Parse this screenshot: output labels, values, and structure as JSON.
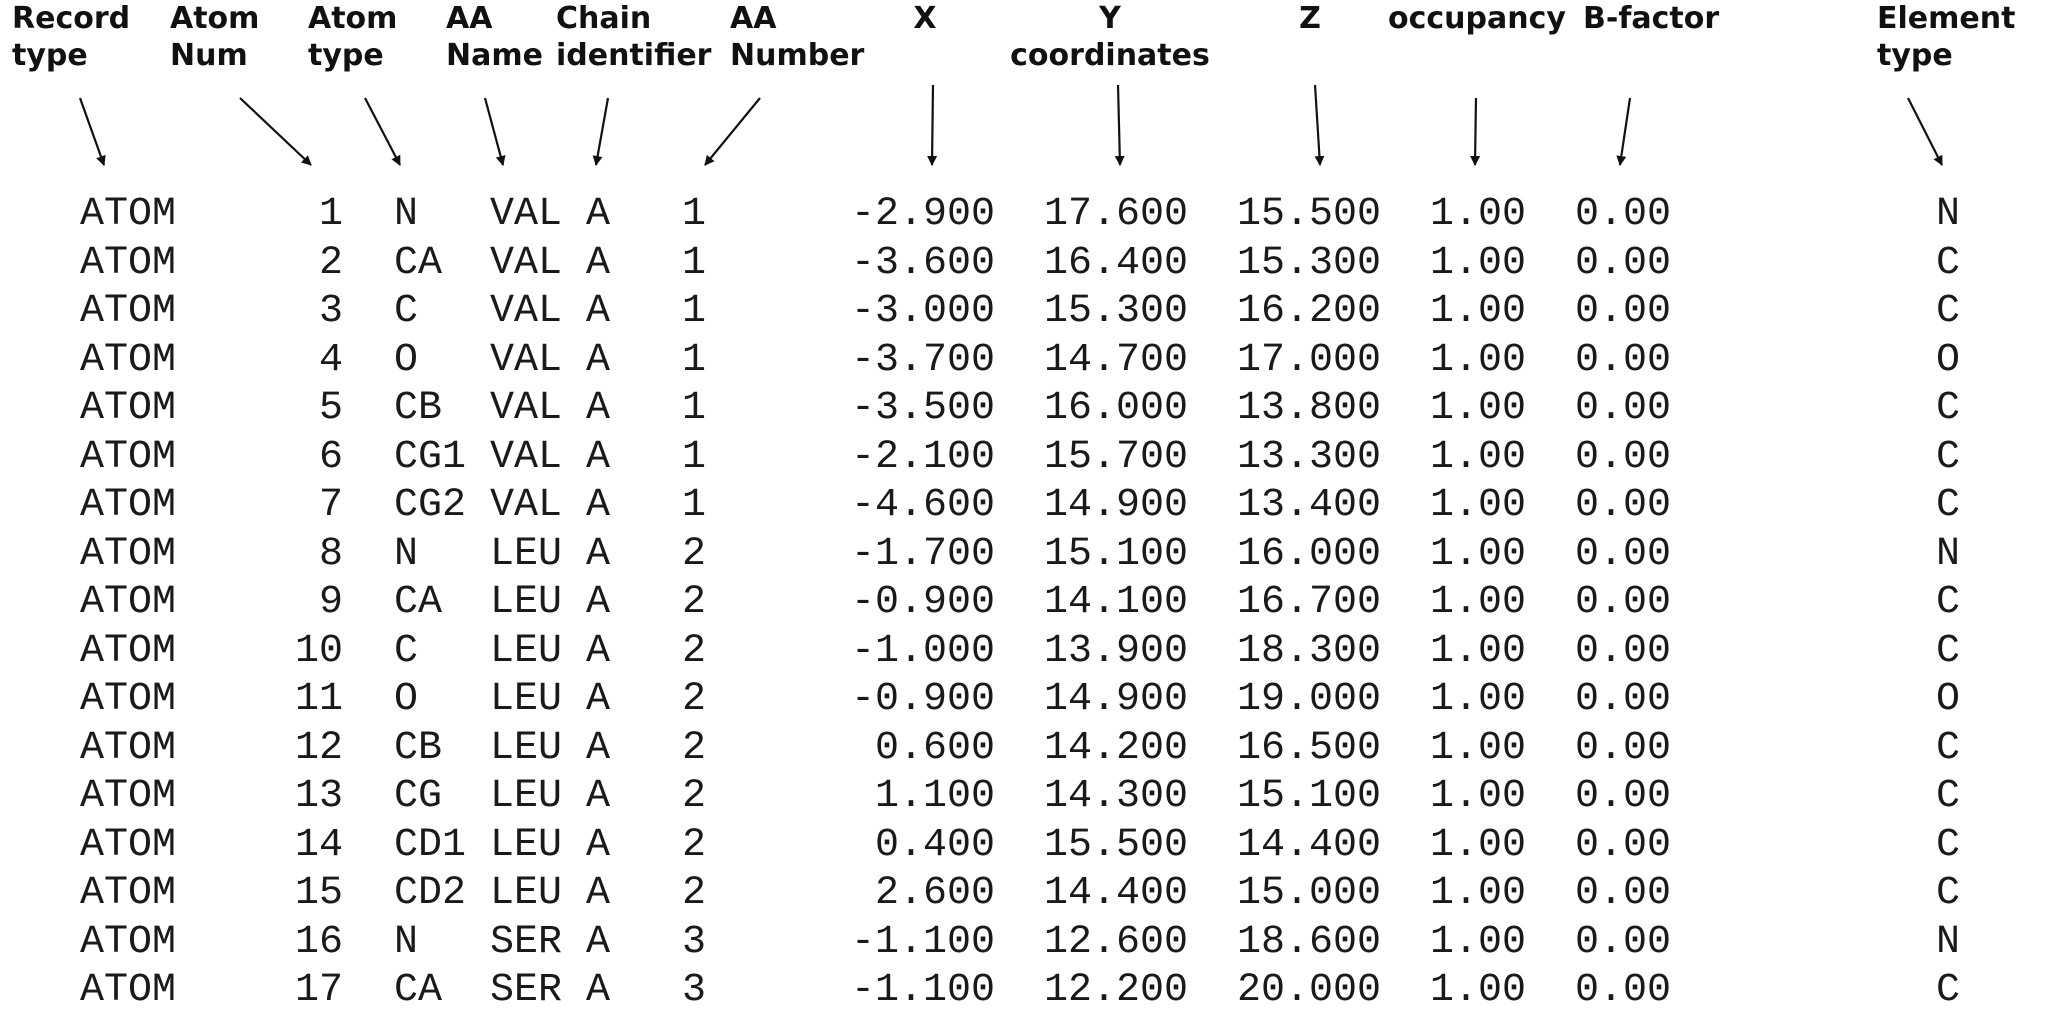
{
  "headers": {
    "record_type": [
      "Record",
      "type"
    ],
    "atom_num": [
      "Atom",
      "Num"
    ],
    "atom_type": [
      "Atom",
      "type"
    ],
    "aa_name": [
      "AA",
      "Name"
    ],
    "chain_identifier": [
      "Chain",
      "identifier"
    ],
    "aa_number": [
      "AA",
      "Number"
    ],
    "x": [
      "X"
    ],
    "y": [
      "Y",
      "coordinates"
    ],
    "z": [
      "Z"
    ],
    "occupancy": [
      "occupancy"
    ],
    "b_factor": [
      "B-factor"
    ],
    "element_type": [
      "Element",
      "type"
    ]
  },
  "rows": [
    {
      "record": "ATOM",
      "num": "1",
      "atom": "N",
      "res": "VAL",
      "chain": "A",
      "resnum": "1",
      "x": "-2.900",
      "y": "17.600",
      "z": "15.500",
      "occ": "1.00",
      "bfac": "0.00",
      "elem": "N"
    },
    {
      "record": "ATOM",
      "num": "2",
      "atom": "CA",
      "res": "VAL",
      "chain": "A",
      "resnum": "1",
      "x": "-3.600",
      "y": "16.400",
      "z": "15.300",
      "occ": "1.00",
      "bfac": "0.00",
      "elem": "C"
    },
    {
      "record": "ATOM",
      "num": "3",
      "atom": "C",
      "res": "VAL",
      "chain": "A",
      "resnum": "1",
      "x": "-3.000",
      "y": "15.300",
      "z": "16.200",
      "occ": "1.00",
      "bfac": "0.00",
      "elem": "C"
    },
    {
      "record": "ATOM",
      "num": "4",
      "atom": "O",
      "res": "VAL",
      "chain": "A",
      "resnum": "1",
      "x": "-3.700",
      "y": "14.700",
      "z": "17.000",
      "occ": "1.00",
      "bfac": "0.00",
      "elem": "O"
    },
    {
      "record": "ATOM",
      "num": "5",
      "atom": "CB",
      "res": "VAL",
      "chain": "A",
      "resnum": "1",
      "x": "-3.500",
      "y": "16.000",
      "z": "13.800",
      "occ": "1.00",
      "bfac": "0.00",
      "elem": "C"
    },
    {
      "record": "ATOM",
      "num": "6",
      "atom": "CG1",
      "res": "VAL",
      "chain": "A",
      "resnum": "1",
      "x": "-2.100",
      "y": "15.700",
      "z": "13.300",
      "occ": "1.00",
      "bfac": "0.00",
      "elem": "C"
    },
    {
      "record": "ATOM",
      "num": "7",
      "atom": "CG2",
      "res": "VAL",
      "chain": "A",
      "resnum": "1",
      "x": "-4.600",
      "y": "14.900",
      "z": "13.400",
      "occ": "1.00",
      "bfac": "0.00",
      "elem": "C"
    },
    {
      "record": "ATOM",
      "num": "8",
      "atom": "N",
      "res": "LEU",
      "chain": "A",
      "resnum": "2",
      "x": "-1.700",
      "y": "15.100",
      "z": "16.000",
      "occ": "1.00",
      "bfac": "0.00",
      "elem": "N"
    },
    {
      "record": "ATOM",
      "num": "9",
      "atom": "CA",
      "res": "LEU",
      "chain": "A",
      "resnum": "2",
      "x": "-0.900",
      "y": "14.100",
      "z": "16.700",
      "occ": "1.00",
      "bfac": "0.00",
      "elem": "C"
    },
    {
      "record": "ATOM",
      "num": "10",
      "atom": "C",
      "res": "LEU",
      "chain": "A",
      "resnum": "2",
      "x": "-1.000",
      "y": "13.900",
      "z": "18.300",
      "occ": "1.00",
      "bfac": "0.00",
      "elem": "C"
    },
    {
      "record": "ATOM",
      "num": "11",
      "atom": "O",
      "res": "LEU",
      "chain": "A",
      "resnum": "2",
      "x": "-0.900",
      "y": "14.900",
      "z": "19.000",
      "occ": "1.00",
      "bfac": "0.00",
      "elem": "O"
    },
    {
      "record": "ATOM",
      "num": "12",
      "atom": "CB",
      "res": "LEU",
      "chain": "A",
      "resnum": "2",
      "x": "0.600",
      "y": "14.200",
      "z": "16.500",
      "occ": "1.00",
      "bfac": "0.00",
      "elem": "C"
    },
    {
      "record": "ATOM",
      "num": "13",
      "atom": "CG",
      "res": "LEU",
      "chain": "A",
      "resnum": "2",
      "x": "1.100",
      "y": "14.300",
      "z": "15.100",
      "occ": "1.00",
      "bfac": "0.00",
      "elem": "C"
    },
    {
      "record": "ATOM",
      "num": "14",
      "atom": "CD1",
      "res": "LEU",
      "chain": "A",
      "resnum": "2",
      "x": "0.400",
      "y": "15.500",
      "z": "14.400",
      "occ": "1.00",
      "bfac": "0.00",
      "elem": "C"
    },
    {
      "record": "ATOM",
      "num": "15",
      "atom": "CD2",
      "res": "LEU",
      "chain": "A",
      "resnum": "2",
      "x": "2.600",
      "y": "14.400",
      "z": "15.000",
      "occ": "1.00",
      "bfac": "0.00",
      "elem": "C"
    },
    {
      "record": "ATOM",
      "num": "16",
      "atom": "N",
      "res": "SER",
      "chain": "A",
      "resnum": "3",
      "x": "-1.100",
      "y": "12.600",
      "z": "18.600",
      "occ": "1.00",
      "bfac": "0.00",
      "elem": "N"
    },
    {
      "record": "ATOM",
      "num": "17",
      "atom": "CA",
      "res": "SER",
      "chain": "A",
      "resnum": "3",
      "x": "-1.100",
      "y": "12.200",
      "z": "20.000",
      "occ": "1.00",
      "bfac": "0.00",
      "elem": "C"
    }
  ]
}
